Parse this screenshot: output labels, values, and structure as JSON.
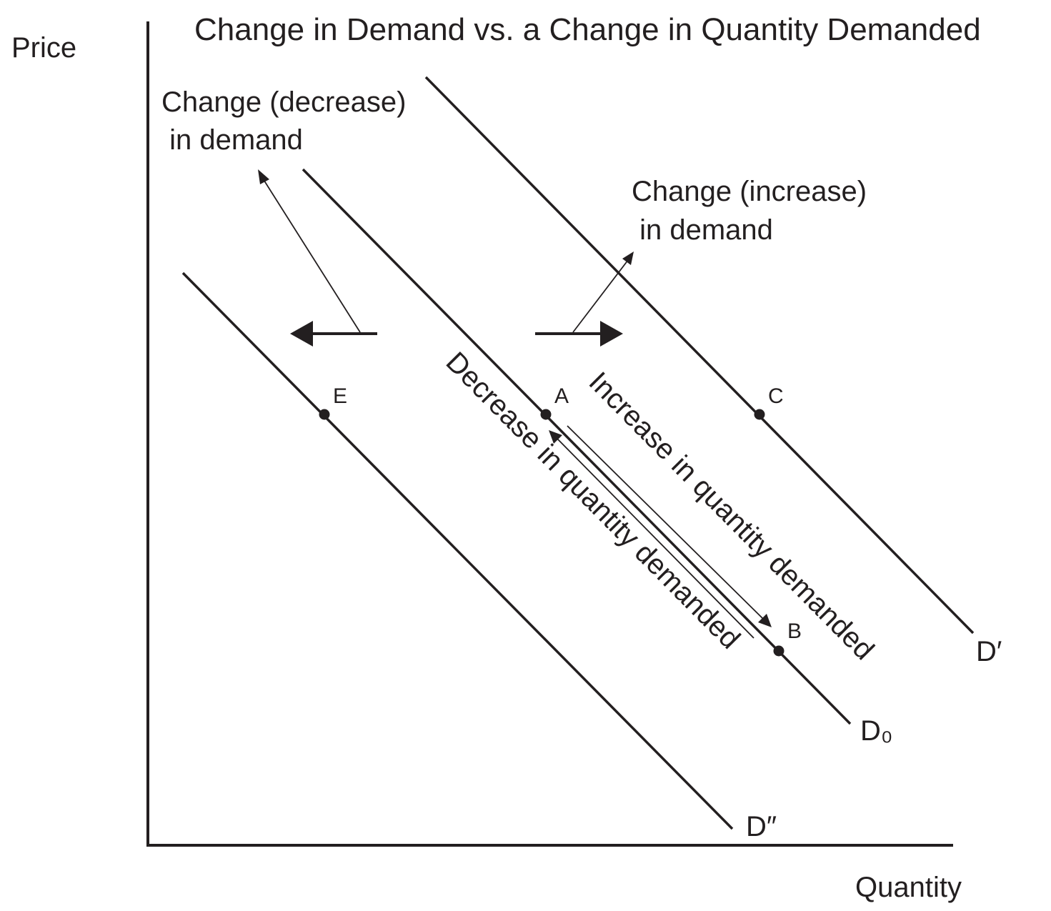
{
  "title": "Change in Demand vs. a Change in Quantity Demanded",
  "axes": {
    "y_label": "Price",
    "x_label": "Quantity"
  },
  "curves": {
    "d0": "D₀",
    "d_prime": "D′",
    "d_double_prime": "D″"
  },
  "points": {
    "a": "A",
    "b": "B",
    "c": "C",
    "e": "E"
  },
  "annotations": {
    "decrease_in_demand": [
      "Change (decrease)",
      " in demand"
    ],
    "increase_in_demand": [
      "Change (increase)",
      " in demand"
    ],
    "increase_in_quantity_demanded": "Increase in quantity demanded",
    "decrease_in_quantity_demanded": "Decrease in quantity demanded"
  },
  "colors": {
    "ink": "#231f20",
    "background": "#ffffff"
  }
}
